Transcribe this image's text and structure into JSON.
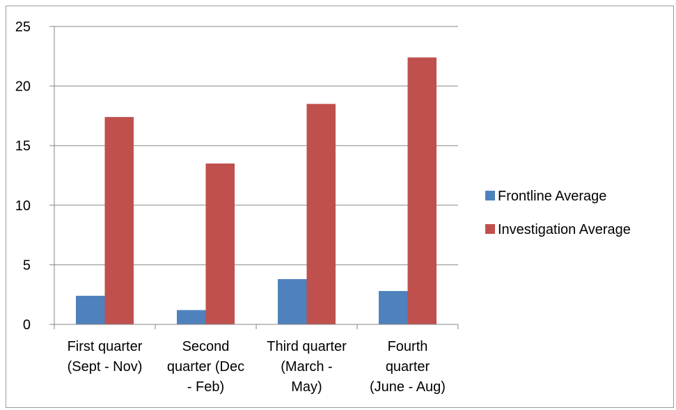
{
  "chart_data": {
    "type": "bar",
    "categories": [
      [
        "First quarter",
        "(Sept - Nov)"
      ],
      [
        "Second",
        "quarter (Dec",
        "- Feb)"
      ],
      [
        "Third quarter",
        "(March -",
        "May)"
      ],
      [
        "Fourth",
        "quarter",
        "(June - Aug)"
      ]
    ],
    "series": [
      {
        "name": "Frontline Average",
        "color": "#4f81bd",
        "values": [
          2.4,
          1.2,
          3.8,
          2.8
        ]
      },
      {
        "name": "Investigation Average",
        "color": "#c0504d",
        "values": [
          17.4,
          13.5,
          18.5,
          22.4
        ]
      }
    ],
    "yticks": [
      "0",
      "5",
      "10",
      "15",
      "20",
      "25"
    ],
    "ylim": [
      0,
      25
    ],
    "grid": true,
    "legend_position": "right"
  }
}
